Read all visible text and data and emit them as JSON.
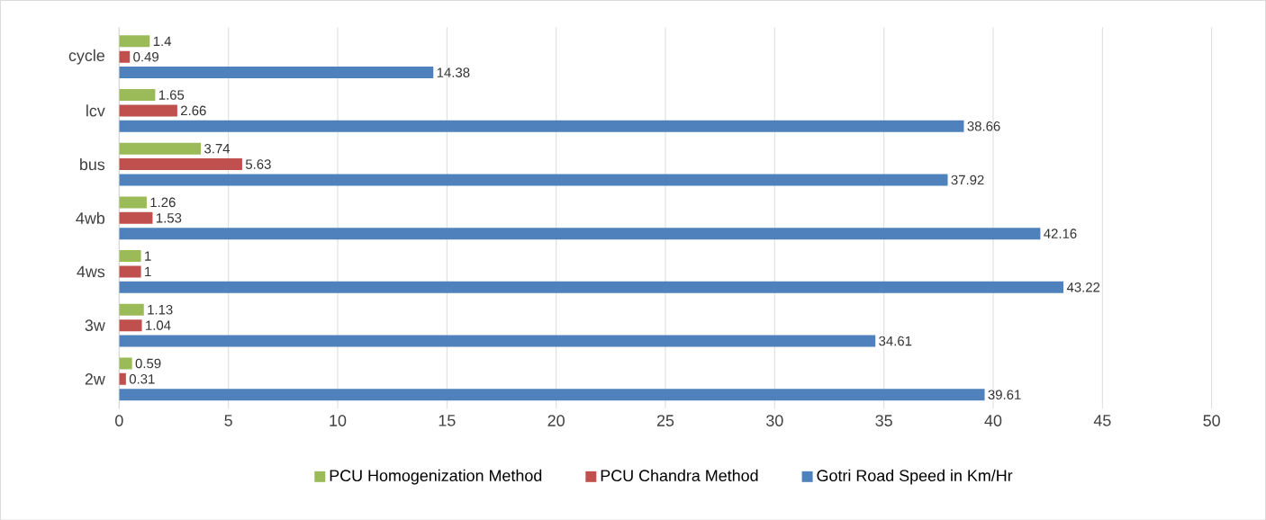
{
  "chart_data": {
    "type": "bar",
    "orientation": "horizontal",
    "categories": [
      "cycle",
      "lcv",
      "bus",
      "4wb",
      "4ws",
      "3w",
      "2w"
    ],
    "series": [
      {
        "name": "PCU Homogenization Method",
        "color": "#9bbb59",
        "values": [
          1.4,
          1.65,
          3.74,
          1.26,
          1,
          1.13,
          0.59
        ]
      },
      {
        "name": "PCU Chandra Method",
        "color": "#c0504d",
        "values": [
          0.49,
          2.66,
          5.63,
          1.53,
          1,
          1.04,
          0.31
        ]
      },
      {
        "name": "Gotri Road Speed in Km/Hr",
        "color": "#4f81bd",
        "values": [
          14.38,
          38.66,
          37.92,
          42.16,
          43.22,
          34.61,
          39.61
        ]
      }
    ],
    "xlim": [
      0,
      50
    ],
    "xticks": [
      0,
      5,
      10,
      15,
      20,
      25,
      30,
      35,
      40,
      45,
      50
    ],
    "grid": "x",
    "legend": "bottom",
    "data_labels": true
  }
}
